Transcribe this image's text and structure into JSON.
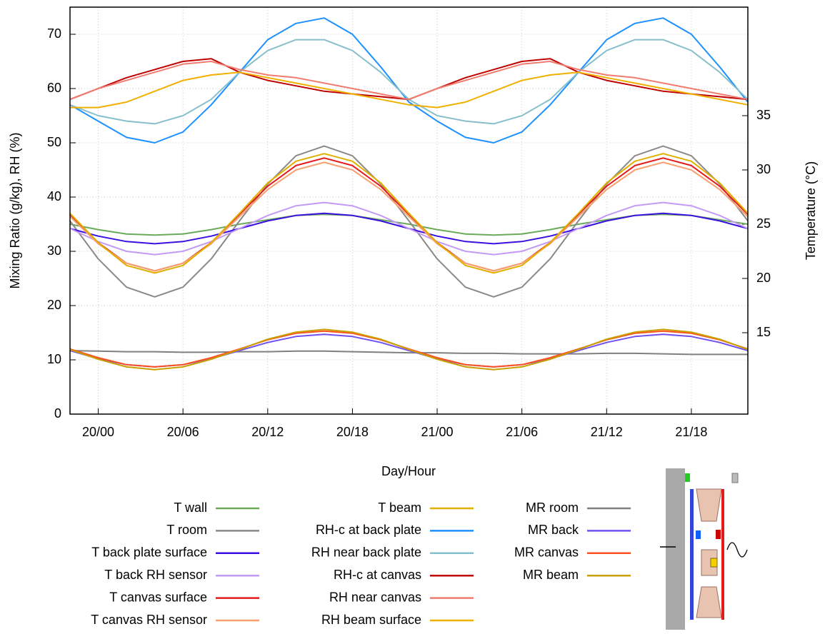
{
  "chart_data": {
    "type": "line",
    "xlabel": "Day/Hour",
    "ylabel": "Mixing Ratio (g/kg), RH (%)",
    "y2label": "Temperature (°C)",
    "x": [
      -2,
      0,
      2,
      4,
      6,
      8,
      10,
      12,
      14,
      16,
      18,
      20,
      22,
      24,
      26,
      28,
      30,
      32,
      34,
      36,
      38,
      40,
      42,
      44,
      46
    ],
    "xlim": [
      -2,
      46
    ],
    "xticks": [
      {
        "value": 0,
        "label": "20/00"
      },
      {
        "value": 6,
        "label": "20/06"
      },
      {
        "value": 12,
        "label": "20/12"
      },
      {
        "value": 18,
        "label": "20/18"
      },
      {
        "value": 24,
        "label": "21/00"
      },
      {
        "value": 30,
        "label": "21/06"
      },
      {
        "value": 36,
        "label": "21/12"
      },
      {
        "value": 42,
        "label": "21/18"
      }
    ],
    "ylim": [
      0,
      75
    ],
    "yticks": [
      0,
      10,
      20,
      30,
      40,
      50,
      60,
      70
    ],
    "y2lim": [
      7.5,
      45
    ],
    "y2ticks": [
      15,
      20,
      25,
      30,
      35
    ],
    "grid": true,
    "legend": "bottom",
    "series": [
      {
        "name": "T wall",
        "color": "#6aaa5a",
        "axis": "y2",
        "values": [
          25.0,
          24.5,
          24.1,
          24.0,
          24.1,
          24.5,
          25.0,
          25.4,
          25.8,
          25.9,
          25.8,
          25.4,
          25.0,
          24.5,
          24.1,
          24.0,
          24.1,
          24.5,
          25.0,
          25.4,
          25.8,
          25.9,
          25.8,
          25.4,
          25.0
        ]
      },
      {
        "name": "T room",
        "color": "#8c8888",
        "axis": "y2",
        "values": [
          25.3,
          21.8,
          19.2,
          18.3,
          19.2,
          21.8,
          25.3,
          28.7,
          31.3,
          32.2,
          31.3,
          28.7,
          25.3,
          21.8,
          19.2,
          18.3,
          19.2,
          21.8,
          25.3,
          28.7,
          31.3,
          32.2,
          31.3,
          28.7,
          25.3
        ]
      },
      {
        "name": "T back plate surface",
        "color": "#3a10e0",
        "axis": "y2",
        "values": [
          24.6,
          23.9,
          23.4,
          23.2,
          23.4,
          23.9,
          24.6,
          25.3,
          25.8,
          26.0,
          25.8,
          25.3,
          24.6,
          23.9,
          23.4,
          23.2,
          23.4,
          23.9,
          24.6,
          25.3,
          25.8,
          26.0,
          25.8,
          25.3,
          24.6
        ]
      },
      {
        "name": "T back RH sensor",
        "color": "#c39bf5",
        "axis": "y2",
        "values": [
          24.6,
          23.4,
          22.5,
          22.2,
          22.5,
          23.4,
          24.6,
          25.8,
          26.7,
          27.0,
          26.7,
          25.8,
          24.6,
          23.4,
          22.5,
          22.2,
          22.5,
          23.4,
          24.6,
          25.8,
          26.7,
          27.0,
          26.7,
          25.8,
          24.6
        ]
      },
      {
        "name": "T canvas surface",
        "color": "#e41a1c",
        "axis": "y2",
        "values": [
          25.9,
          23.3,
          21.4,
          20.7,
          21.4,
          23.3,
          25.9,
          28.5,
          30.4,
          31.1,
          30.4,
          28.5,
          25.9,
          23.3,
          21.4,
          20.7,
          21.4,
          23.3,
          25.9,
          28.5,
          30.4,
          31.1,
          30.4,
          28.5,
          25.9
        ]
      },
      {
        "name": "T canvas RH sensor",
        "color": "#f7a070",
        "axis": "y2",
        "values": [
          25.7,
          23.2,
          21.4,
          20.7,
          21.4,
          23.2,
          25.7,
          28.2,
          30.0,
          30.7,
          30.0,
          28.2,
          25.7,
          23.2,
          21.4,
          20.7,
          21.4,
          23.2,
          25.7,
          28.2,
          30.0,
          30.7,
          30.0,
          28.2,
          25.7
        ]
      },
      {
        "name": "T beam",
        "color": "#e0b000",
        "axis": "y2",
        "values": [
          26.0,
          23.3,
          21.2,
          20.5,
          21.2,
          23.3,
          26.0,
          28.8,
          30.8,
          31.5,
          30.8,
          28.8,
          26.0,
          23.3,
          21.2,
          20.5,
          21.2,
          23.3,
          26.0,
          28.8,
          30.8,
          31.5,
          30.8,
          28.8,
          26.0
        ]
      },
      {
        "name": "RH-c at back plate",
        "color": "#1e90ff",
        "values": [
          57,
          54,
          51,
          50,
          52,
          57,
          63,
          69,
          72,
          73,
          70,
          64,
          57.5,
          54,
          51,
          50,
          52,
          57,
          63,
          69,
          72,
          73,
          70,
          64,
          57.5
        ]
      },
      {
        "name": "RH near back plate",
        "color": "#88bfcc",
        "values": [
          57,
          55,
          54,
          53.5,
          55,
          58,
          63,
          67,
          69,
          69,
          67,
          63,
          58,
          55,
          54,
          53.5,
          55,
          58,
          63,
          67,
          69,
          69,
          67,
          63,
          58
        ]
      },
      {
        "name": "RH-c at canvas",
        "color": "#c00000",
        "values": [
          58,
          60,
          62,
          63.5,
          65,
          65.5,
          63,
          61.5,
          60.5,
          59.5,
          59,
          58.5,
          58,
          60,
          62,
          63.5,
          65,
          65.5,
          63,
          61.5,
          60.5,
          59.5,
          59,
          58.5,
          58
        ]
      },
      {
        "name": "RH near canvas",
        "color": "#f07c70",
        "values": [
          58,
          60,
          61.5,
          63,
          64.5,
          65,
          63.5,
          62.5,
          62,
          61,
          60,
          59,
          58,
          60,
          61.5,
          63,
          64.5,
          65,
          63.5,
          62.5,
          62,
          61,
          60,
          59,
          58
        ]
      },
      {
        "name": "RH beam surface",
        "color": "#f0b000",
        "values": [
          56.5,
          56.5,
          57.5,
          59.5,
          61.5,
          62.5,
          63,
          62,
          61,
          60,
          59,
          58,
          57,
          56.5,
          57.5,
          59.5,
          61.5,
          62.5,
          63,
          62,
          61,
          60,
          59,
          58,
          57
        ]
      },
      {
        "name": "MR room",
        "color": "#808080",
        "values": [
          11.7,
          11.6,
          11.5,
          11.5,
          11.4,
          11.4,
          11.5,
          11.5,
          11.6,
          11.6,
          11.5,
          11.4,
          11.3,
          11.3,
          11.2,
          11.2,
          11.1,
          11.1,
          11.1,
          11.2,
          11.2,
          11.1,
          11.0,
          11.0,
          11.0
        ]
      },
      {
        "name": "MR back",
        "color": "#7050f0",
        "values": [
          11.7,
          10.2,
          9.1,
          8.7,
          9.1,
          10.2,
          11.7,
          13.2,
          14.3,
          14.7,
          14.3,
          13.2,
          11.7,
          10.2,
          9.1,
          8.7,
          9.1,
          10.2,
          11.7,
          13.2,
          14.3,
          14.7,
          14.3,
          13.2,
          11.7
        ]
      },
      {
        "name": "MR canvas",
        "color": "#ff5020",
        "values": [
          12.0,
          10.4,
          9.1,
          8.7,
          9.1,
          10.4,
          12.0,
          13.7,
          14.9,
          15.3,
          14.9,
          13.7,
          12.0,
          10.4,
          9.1,
          8.7,
          9.1,
          10.4,
          12.0,
          13.7,
          14.9,
          15.3,
          14.9,
          13.7,
          12.0
        ]
      },
      {
        "name": "MR beam",
        "color": "#c8a000",
        "values": [
          11.9,
          10.1,
          8.7,
          8.2,
          8.7,
          10.1,
          11.9,
          13.8,
          15.1,
          15.6,
          15.1,
          13.8,
          11.9,
          10.1,
          8.7,
          8.2,
          8.7,
          10.1,
          11.9,
          13.8,
          15.1,
          15.6,
          15.1,
          13.8,
          11.9
        ]
      }
    ]
  }
}
